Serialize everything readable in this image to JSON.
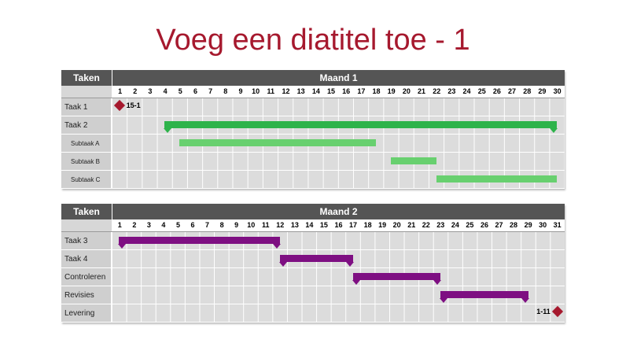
{
  "title": "Voeg een diatitel toe - 1",
  "colors": {
    "title": "#a6192e",
    "header": "#555555",
    "milestone": "#a6192e",
    "task_bar_green": "#2db34a",
    "subtask_bar_green": "#68d06f",
    "task_bar_purple": "#7e0f82"
  },
  "gantt1": {
    "tasks_header": "Taken",
    "month_header": "Maand 1",
    "days": [
      "1",
      "2",
      "3",
      "4",
      "5",
      "6",
      "7",
      "8",
      "9",
      "10",
      "11",
      "12",
      "13",
      "14",
      "15",
      "16",
      "17",
      "18",
      "19",
      "20",
      "21",
      "22",
      "23",
      "24",
      "25",
      "26",
      "27",
      "28",
      "29",
      "30"
    ],
    "rows": [
      {
        "label": "Taak 1",
        "type": "milestone",
        "day": 1,
        "milestone_label": "15-1"
      },
      {
        "label": "Taak 2",
        "type": "task",
        "start": 4,
        "end": 30,
        "color": "green"
      },
      {
        "label": "Subtaak A",
        "type": "subtask",
        "start": 5,
        "end": 18,
        "color": "lgreen"
      },
      {
        "label": "Subtaak B",
        "type": "subtask",
        "start": 19,
        "end": 22,
        "color": "lgreen"
      },
      {
        "label": "Subtaak C",
        "type": "subtask",
        "start": 22,
        "end": 30,
        "color": "lgreen"
      }
    ]
  },
  "gantt2": {
    "tasks_header": "Taken",
    "month_header": "Maand 2",
    "days": [
      "1",
      "2",
      "3",
      "4",
      "5",
      "6",
      "7",
      "8",
      "9",
      "10",
      "11",
      "12",
      "13",
      "14",
      "15",
      "16",
      "17",
      "18",
      "19",
      "20",
      "21",
      "22",
      "23",
      "24",
      "25",
      "26",
      "27",
      "28",
      "29",
      "30",
      "31"
    ],
    "rows": [
      {
        "label": "Taak 3",
        "type": "task",
        "start": 1,
        "end": 12,
        "color": "purple"
      },
      {
        "label": "Taak 4",
        "type": "task",
        "start": 12,
        "end": 17,
        "color": "purple"
      },
      {
        "label": "Controleren",
        "type": "task",
        "start": 17,
        "end": 23,
        "color": "purple"
      },
      {
        "label": "Revisies",
        "type": "task",
        "start": 23,
        "end": 29,
        "color": "purple"
      },
      {
        "label": "Levering",
        "type": "milestone",
        "day": 31,
        "milestone_label": "1-11"
      }
    ]
  }
}
